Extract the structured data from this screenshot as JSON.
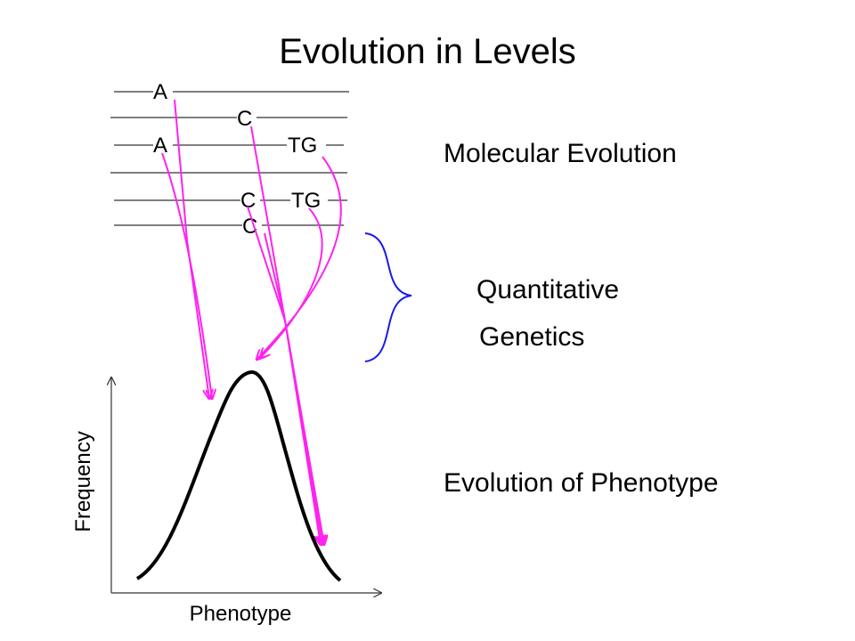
{
  "title": "Evolution in Levels",
  "levels": {
    "molecular": "Molecular Evolution",
    "quantitative_1": "Quantitative",
    "quantitative_2": "Genetics",
    "phenotype": "Evolution of Phenotype"
  },
  "loci": {
    "a1": "A",
    "c1": "C",
    "a2": "A",
    "tg1": "TG",
    "c2": "C",
    "tg2": "TG",
    "c3": "C"
  },
  "axes": {
    "x_label": "Phenotype",
    "y_label": "Frequency"
  },
  "colors": {
    "arrow": "#ff22ee",
    "brace": "#1a1aee",
    "curve": "#000000",
    "line": "#333333"
  }
}
